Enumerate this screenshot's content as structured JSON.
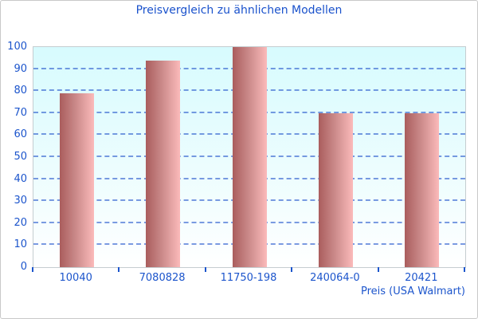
{
  "title": "Preisvergleich zu ähnlichen Modellen",
  "colors": {
    "text_blue": "#1c55cc",
    "grid_blue": "#2e5ecf",
    "bar_gradient_left": "#aa5d5d",
    "bar_gradient_right": "#fbbaba",
    "plot_bg_top": "#d7fbfe",
    "plot_bg_bottom": "#ffffff",
    "plot_border": "#c5cdd0",
    "outer_border": "#c9c9c9"
  },
  "chart_data": {
    "type": "bar",
    "title": "Preisvergleich zu ähnlichen Modellen",
    "categories": [
      "10040",
      "7080828",
      "11750-198",
      "240064-0",
      "20421"
    ],
    "values": [
      79,
      94,
      100,
      70,
      70
    ],
    "xlabel": "Preis (USA Walmart)",
    "ylabel": "",
    "ylim": [
      0,
      100
    ],
    "yticks": [
      0,
      10,
      20,
      30,
      40,
      50,
      60,
      70,
      80,
      90,
      100
    ],
    "grid": "horizontal-dashed",
    "legend": "none",
    "bar_orientation": "vertical"
  }
}
